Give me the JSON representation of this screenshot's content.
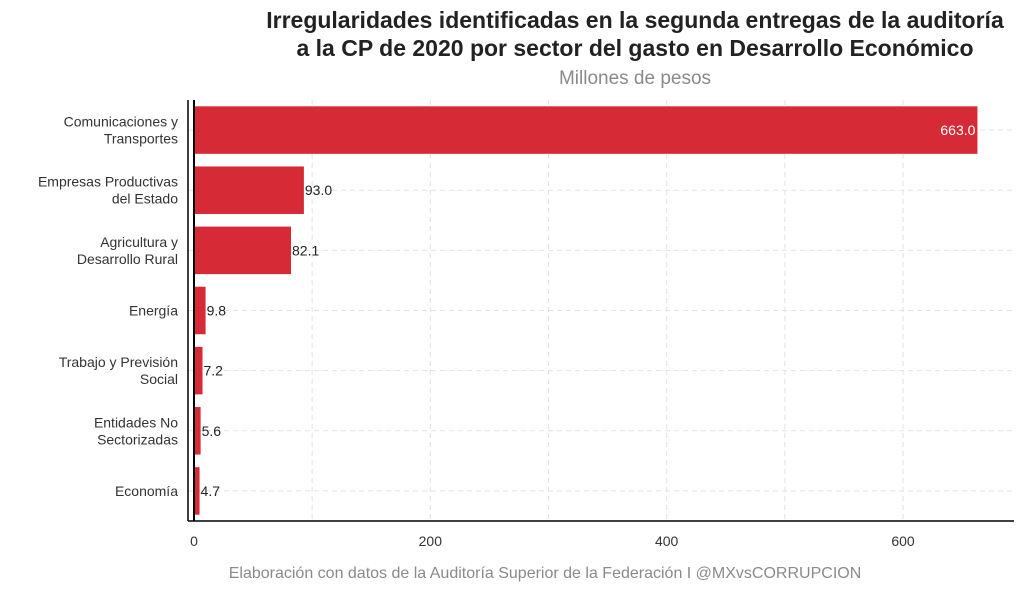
{
  "chart_data": {
    "type": "bar",
    "orientation": "horizontal",
    "title_line1": "Irregularidades identificadas en la segunda entregas de la auditoría",
    "title_line2": "a la CP de 2020 por sector del gasto en Desarrollo Económico",
    "subtitle": "Millones de pesos",
    "caption": "Elaboración con datos de la Auditoría Superior de la Federación I @MXvsCORRUPCION",
    "categories": [
      [
        "Comunicaciones y",
        "Transportes"
      ],
      [
        "Empresas Productivas",
        "del Estado"
      ],
      [
        "Agricultura y",
        "Desarrollo Rural"
      ],
      [
        "Energía"
      ],
      [
        "Trabajo y Previsión",
        "Social"
      ],
      [
        "Entidades No",
        "Sectorizadas"
      ],
      [
        "Economía"
      ]
    ],
    "values": [
      663.0,
      93.0,
      82.1,
      9.8,
      7.2,
      5.6,
      4.7
    ],
    "value_labels": [
      "663.0",
      "93.0",
      "82.1",
      "9.8",
      "7.2",
      "5.6",
      "4.7"
    ],
    "x_ticks": [
      0,
      200,
      400,
      600
    ],
    "x_tick_labels": [
      "0",
      "200",
      "400",
      "600"
    ],
    "xlim": [
      0,
      700
    ],
    "bar_color": "#d62a36",
    "grid": true
  }
}
